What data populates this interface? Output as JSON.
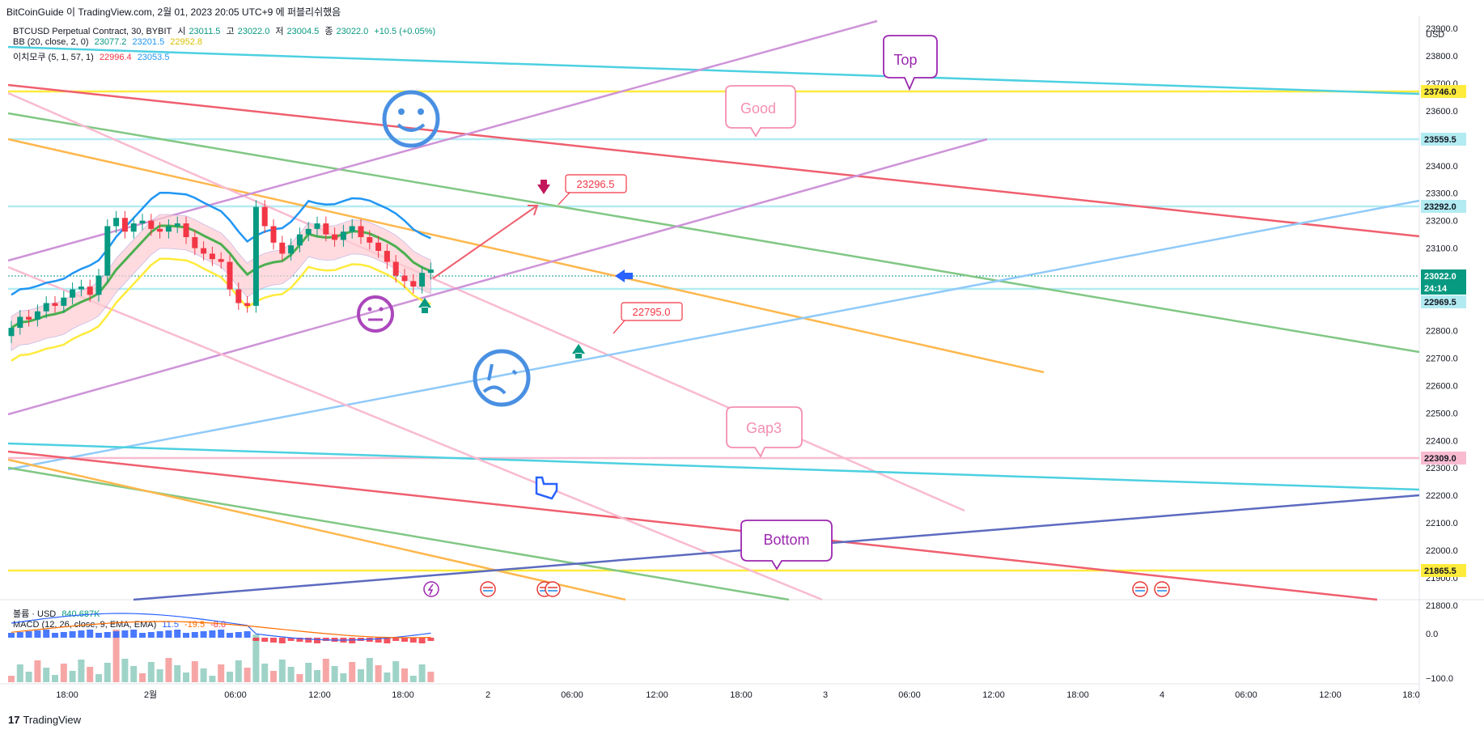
{
  "header": {
    "caption": "BitCoinGuide 이 TradingView.com, 2월 01, 2023 20:05 UTC+9 에 퍼블리쉬했음"
  },
  "legend": {
    "symbol": "BTCUSD Perpetual Contract, 30, BYBIT",
    "o_label": "시",
    "o": "23011.5",
    "h_label": "고",
    "h": "23022.0",
    "l_label": "저",
    "l": "23004.5",
    "c_label": "종",
    "c": "23022.0",
    "chg": "+10.5 (+0.05%)",
    "bb_name": "BB (20, close, 2, 0)",
    "bb_basis": "23077.2",
    "bb_upper": "23201.5",
    "bb_lower": "22952.8",
    "ichi_name": "이치모쿠 (5, 1, 57, 1)",
    "ichi_a": "22996.4",
    "ichi_b": "23053.5"
  },
  "volume_legend": {
    "name": "볼륨 · USD",
    "value": "840.687K"
  },
  "macd_legend": {
    "name": "MACD (12, 26, close, 9, EMA, EMA)",
    "v1": "11.5",
    "v2": "-19.5",
    "v3": "-8.0"
  },
  "brand": {
    "logo": "17",
    "name": "TradingView"
  },
  "price_axis": {
    "currency": "USD",
    "ticks": [
      21800,
      21900,
      22000,
      22100,
      22200,
      22300,
      22400,
      22500,
      22600,
      22700,
      22800,
      22900,
      23000,
      23100,
      23200,
      23300,
      23400,
      23500,
      23600,
      23700,
      23800,
      23900
    ],
    "labels": [
      "21800.0",
      "21900.0",
      "22000.0",
      "22100.0",
      "22200.0",
      "22300.0",
      "22400.0",
      "22500.0",
      "22600.0",
      "22700.0",
      "22800.0",
      "22900.0",
      "23000.0",
      "23100.0",
      "23200.0",
      "23300.0",
      "23400.0",
      "23500.0",
      "23600.0",
      "23700.0",
      "23800.0",
      "23900.0"
    ]
  },
  "macd_axis": {
    "labels": [
      "0.0",
      "−100.0"
    ]
  },
  "time_axis": {
    "labels": [
      "18:00",
      "2월",
      "06:00",
      "12:00",
      "18:00",
      "2",
      "06:00",
      "12:00",
      "18:00",
      "3",
      "06:00",
      "12:00",
      "18:00",
      "4",
      "06:00",
      "12:00",
      "18:0"
    ]
  },
  "price_tags": [
    {
      "text": "23746.0",
      "bg": "#ffeb3b",
      "fg": "#131722"
    },
    {
      "text": "23559.5",
      "bg": "#b2ebf2",
      "fg": "#131722"
    },
    {
      "text": "23292.0",
      "bg": "#b2ebf2",
      "fg": "#131722"
    },
    {
      "text": "23022.0",
      "bg": "#089981",
      "fg": "#ffffff"
    },
    {
      "text": "24:14",
      "bg": "#089981",
      "fg": "#ffffff"
    },
    {
      "text": "22969.5",
      "bg": "#b2ebf2",
      "fg": "#131722"
    },
    {
      "text": "22309.0",
      "bg": "#f8bbd0",
      "fg": "#131722"
    },
    {
      "text": "21865.5",
      "bg": "#ffeb3b",
      "fg": "#131722"
    }
  ],
  "annotations": {
    "top": "Top",
    "good": "Good",
    "gap3": "Gap3",
    "bottom": "Bottom",
    "price_label_1": "23296.5",
    "price_label_2": "22795.0"
  },
  "colors": {
    "up": "#089981",
    "down": "#f23645",
    "bb_basis": "#4caf50",
    "bb_upper": "#2196f3",
    "bb_lower": "#ffeb3b",
    "cloud": "#e3f2fd",
    "cloud_red": "#ffcdd2"
  },
  "chart_data": {
    "type": "candlestick",
    "symbol": "BTCUSD Perpetual Contract",
    "interval": "30",
    "ylim": [
      21750,
      23980
    ],
    "last_price": 23022.0,
    "candles_close": [
      22810,
      22850,
      22840,
      22870,
      22900,
      22890,
      22920,
      22950,
      22960,
      22930,
      23000,
      23180,
      23210,
      23160,
      23190,
      23200,
      23170,
      23160,
      23180,
      23190,
      23140,
      23100,
      23080,
      23060,
      23050,
      22950,
      22900,
      22890,
      23250,
      23180,
      23120,
      23080,
      23110,
      23150,
      23170,
      23190,
      23150,
      23130,
      23160,
      23180,
      23140,
      23120,
      23090,
      23050,
      23000,
      22980,
      22960,
      23010,
      23022
    ],
    "horizontal_levels": [
      23746.0,
      23559.5,
      23292.0,
      22969.5,
      22309.0,
      21865.5
    ]
  }
}
